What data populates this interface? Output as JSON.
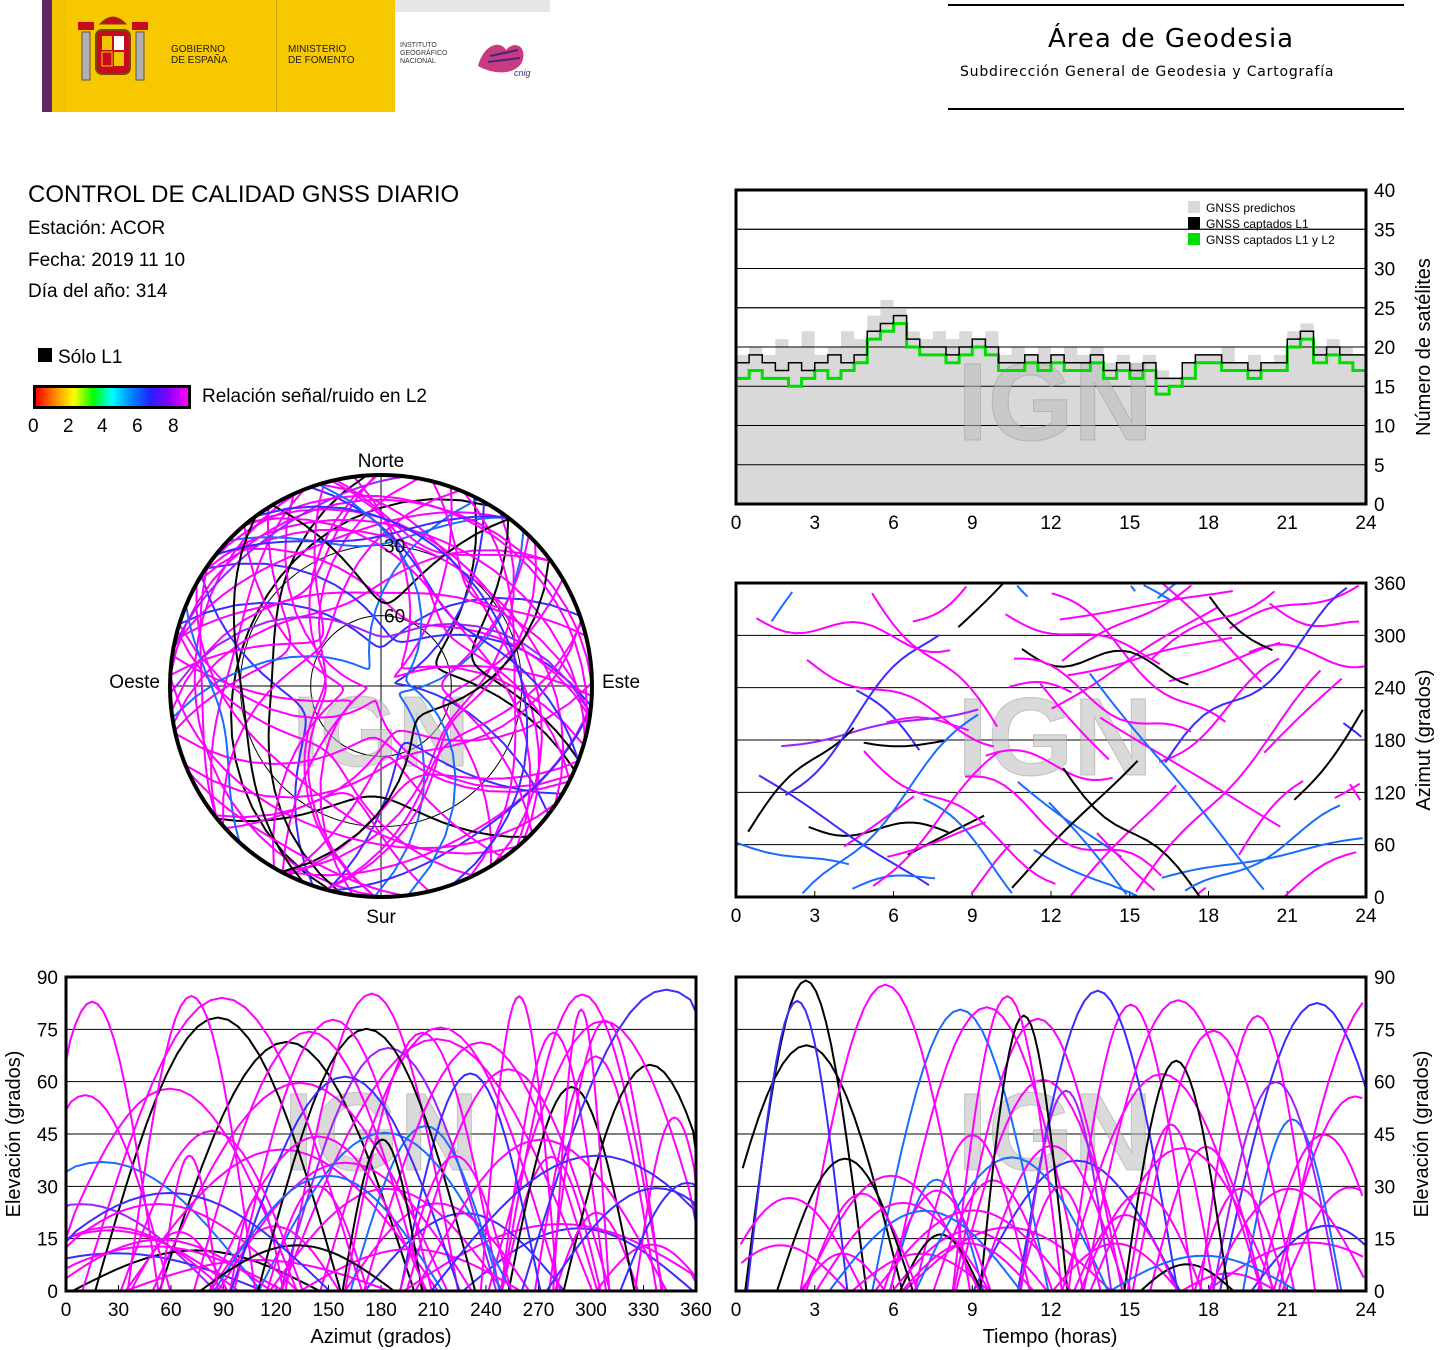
{
  "header": {
    "gov_line1": "GOBIERNO",
    "gov_line2": "DE ESPAÑA",
    "min_line1": "MINISTERIO",
    "min_line2": "DE FOMENTO",
    "inst_line1": "INSTITUTO",
    "inst_line2": "GEOGRÁFICO",
    "inst_line3": "NACIONAL",
    "cnig_logo": "cnig",
    "area_title": "Área de Geodesia",
    "area_subtitle": "Subdirección General de Geodesia y Cartografía"
  },
  "info": {
    "title": "CONTROL DE CALIDAD GNSS DIARIO",
    "station": "Estación: ACOR",
    "date": "Fecha: 2019 11 10",
    "doy": "Día del año: 314"
  },
  "legend": {
    "only_l1": "Sólo L1",
    "snr_label": "Relación señal/ruido en L2",
    "snr_ticks": [
      "0",
      "2",
      "4",
      "6",
      "8"
    ],
    "colors": {
      "only_l1": "#000000",
      "snr_low": "#ff0000",
      "snr_high": "#ff00ff"
    }
  },
  "watermark": "IGN",
  "chart_data": [
    {
      "type": "line",
      "id": "satellite-count",
      "ylabel": "Número de satélites",
      "xlim": [
        0,
        24
      ],
      "ylim": [
        0,
        40
      ],
      "x_ticks": [
        "0",
        "3",
        "6",
        "9",
        "12",
        "15",
        "18",
        "21",
        "24"
      ],
      "y_ticks": [
        "0",
        "5",
        "10",
        "15",
        "20",
        "25",
        "30",
        "35",
        "40"
      ],
      "grid": true,
      "legend_position": "top-right",
      "series": [
        {
          "name": "GNSS predichos",
          "color": "#d9d9d9",
          "style": "filled-area",
          "x": [
            0,
            0.5,
            1,
            1.5,
            2,
            2.5,
            3,
            3.5,
            4,
            4.5,
            5,
            5.5,
            6,
            6.5,
            7,
            7.5,
            8,
            8.5,
            9,
            9.5,
            10,
            10.5,
            11,
            11.5,
            12,
            12.5,
            13,
            13.5,
            14,
            14.5,
            15,
            15.5,
            16,
            16.5,
            17,
            17.5,
            18,
            18.5,
            19,
            19.5,
            20,
            20.5,
            21,
            21.5,
            22,
            22.5,
            23,
            23.5,
            24
          ],
          "values": [
            19,
            20,
            19,
            21,
            20,
            22,
            19,
            20,
            22,
            21,
            24,
            26,
            25,
            22,
            21,
            22,
            21,
            22,
            21,
            22,
            19,
            20,
            19,
            20,
            19,
            20,
            19,
            20,
            18,
            19,
            18,
            19,
            17,
            16,
            18,
            19,
            19,
            20,
            18,
            19,
            18,
            19,
            22,
            23,
            20,
            21,
            20,
            19,
            19
          ]
        },
        {
          "name": "GNSS captados L1",
          "color": "#000000",
          "x": [
            0,
            0.5,
            1,
            1.5,
            2,
            2.5,
            3,
            3.5,
            4,
            4.5,
            5,
            5.5,
            6,
            6.5,
            7,
            7.5,
            8,
            8.5,
            9,
            9.5,
            10,
            10.5,
            11,
            11.5,
            12,
            12.5,
            13,
            13.5,
            14,
            14.5,
            15,
            15.5,
            16,
            16.5,
            17,
            17.5,
            18,
            18.5,
            19,
            19.5,
            20,
            20.5,
            21,
            21.5,
            22,
            22.5,
            23,
            23.5,
            24
          ],
          "values": [
            18,
            19,
            18,
            17,
            18,
            17,
            18,
            19,
            18,
            19,
            22,
            23,
            24,
            21,
            20,
            20,
            19,
            20,
            21,
            20,
            18,
            18,
            19,
            18,
            19,
            18,
            18,
            19,
            17,
            18,
            17,
            18,
            16,
            16,
            18,
            19,
            19,
            18,
            18,
            17,
            18,
            18,
            21,
            22,
            19,
            20,
            19,
            19,
            18
          ]
        },
        {
          "name": "GNSS captados L1 y L2",
          "color": "#00dd00",
          "x": [
            0,
            0.5,
            1,
            1.5,
            2,
            2.5,
            3,
            3.5,
            4,
            4.5,
            5,
            5.5,
            6,
            6.5,
            7,
            7.5,
            8,
            8.5,
            9,
            9.5,
            10,
            10.5,
            11,
            11.5,
            12,
            12.5,
            13,
            13.5,
            14,
            14.5,
            15,
            15.5,
            16,
            16.5,
            17,
            17.5,
            18,
            18.5,
            19,
            19.5,
            20,
            20.5,
            21,
            21.5,
            22,
            22.5,
            23,
            23.5,
            24
          ],
          "values": [
            16,
            17,
            16,
            16,
            15,
            16,
            17,
            16,
            17,
            18,
            21,
            22,
            23,
            20,
            19,
            19,
            18,
            19,
            20,
            19,
            17,
            17,
            18,
            17,
            18,
            17,
            17,
            18,
            16,
            17,
            16,
            17,
            14,
            15,
            16,
            18,
            18,
            17,
            17,
            16,
            17,
            17,
            20,
            21,
            18,
            19,
            18,
            17,
            17
          ]
        }
      ]
    },
    {
      "type": "scatter",
      "id": "azimuth-time",
      "ylabel": "Azimut (grados)",
      "xlim": [
        0,
        24
      ],
      "ylim": [
        0,
        360
      ],
      "x_ticks": [
        "0",
        "3",
        "6",
        "9",
        "12",
        "15",
        "18",
        "21",
        "24"
      ],
      "y_ticks": [
        "0",
        "60",
        "120",
        "180",
        "240",
        "300",
        "360"
      ],
      "grid": true
    },
    {
      "type": "scatter",
      "id": "skyplot",
      "labels": {
        "north": "Norte",
        "south": "Sur",
        "east": "Este",
        "west": "Oeste"
      },
      "rings": [
        "30",
        "60"
      ]
    },
    {
      "type": "scatter",
      "id": "elevation-azimuth",
      "xlabel": "Azimut (grados)",
      "ylabel": "Elevación (grados)",
      "xlim": [
        0,
        360
      ],
      "ylim": [
        0,
        90
      ],
      "x_ticks": [
        "0",
        "30",
        "60",
        "90",
        "120",
        "150",
        "180",
        "210",
        "240",
        "270",
        "300",
        "330",
        "360"
      ],
      "y_ticks": [
        "0",
        "15",
        "30",
        "45",
        "60",
        "75",
        "90"
      ],
      "grid": true
    },
    {
      "type": "scatter",
      "id": "elevation-time",
      "xlabel": "Tiempo (horas)",
      "ylabel": "Elevación (grados)",
      "xlim": [
        0,
        24
      ],
      "ylim": [
        0,
        90
      ],
      "x_ticks": [
        "0",
        "3",
        "6",
        "9",
        "12",
        "15",
        "18",
        "21",
        "24"
      ],
      "y_ticks": [
        "0",
        "15",
        "30",
        "45",
        "60",
        "75",
        "90"
      ],
      "grid": true
    }
  ]
}
